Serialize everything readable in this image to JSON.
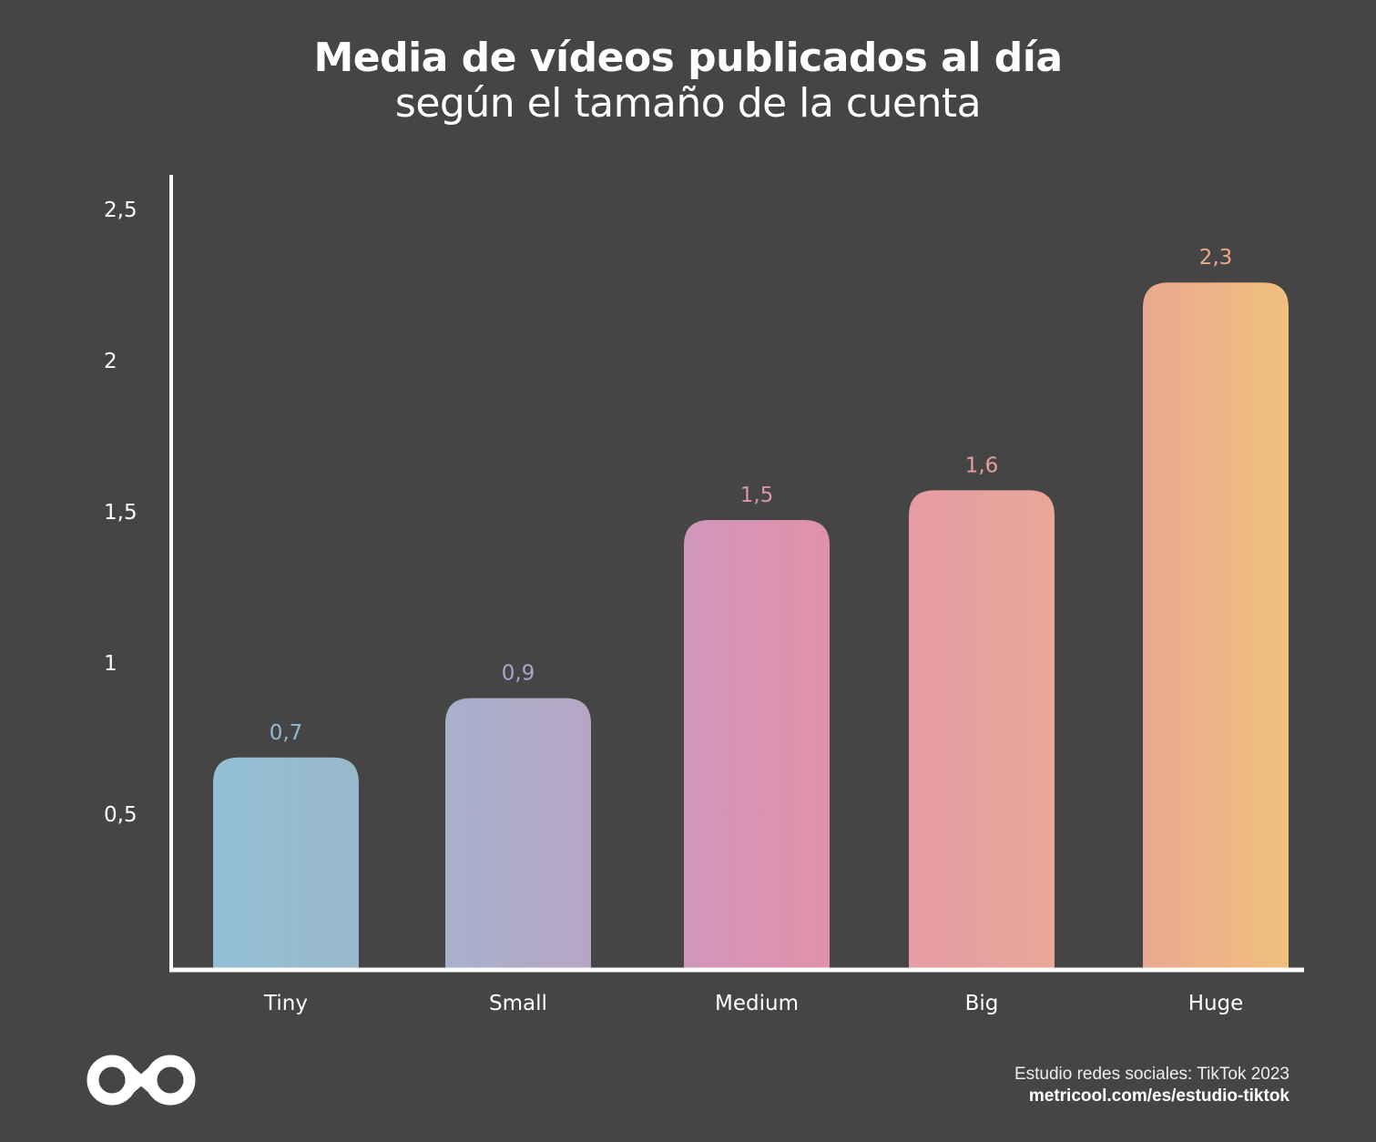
{
  "chart_data": {
    "type": "bar",
    "title": "Media de vídeos publicados al día",
    "subtitle": "según el tamaño de la cuenta",
    "categories": [
      "Tiny",
      "Small",
      "Medium",
      "Big",
      "Huge"
    ],
    "values": [
      0.7,
      0.9,
      1.5,
      1.6,
      2.3
    ],
    "value_labels": [
      "0,7",
      "0,9",
      "1,5",
      "1,6",
      "2,3"
    ],
    "y_ticks": [
      0.5,
      1,
      1.5,
      2,
      2.5
    ],
    "y_tick_labels": [
      "0,5",
      "1",
      "1,5",
      "2",
      "2,5"
    ],
    "ylim": [
      0,
      2.7
    ],
    "grid": false,
    "xlabel": "",
    "ylabel": "",
    "bar_colors": [
      [
        "#93bfd5",
        "#9ab8cc"
      ],
      [
        "#a8b0cc",
        "#b6a6c4"
      ],
      [
        "#d196bb",
        "#e191a9"
      ],
      [
        "#e59ca4",
        "#e8a798"
      ],
      [
        "#eaa990",
        "#efc07c"
      ]
    ],
    "label_colors": [
      "#93b8d0",
      "#a6a9c6",
      "#d994b4",
      "#e69ea0",
      "#eca98a"
    ]
  },
  "footer": {
    "source": "Estudio redes sociales: TikTok 2023",
    "url": "metricool.com/es/estudio-tiktok"
  },
  "logo": {
    "name": "metricool-logo"
  },
  "colors": {
    "background": "#454545",
    "axis": "#ffffff"
  }
}
